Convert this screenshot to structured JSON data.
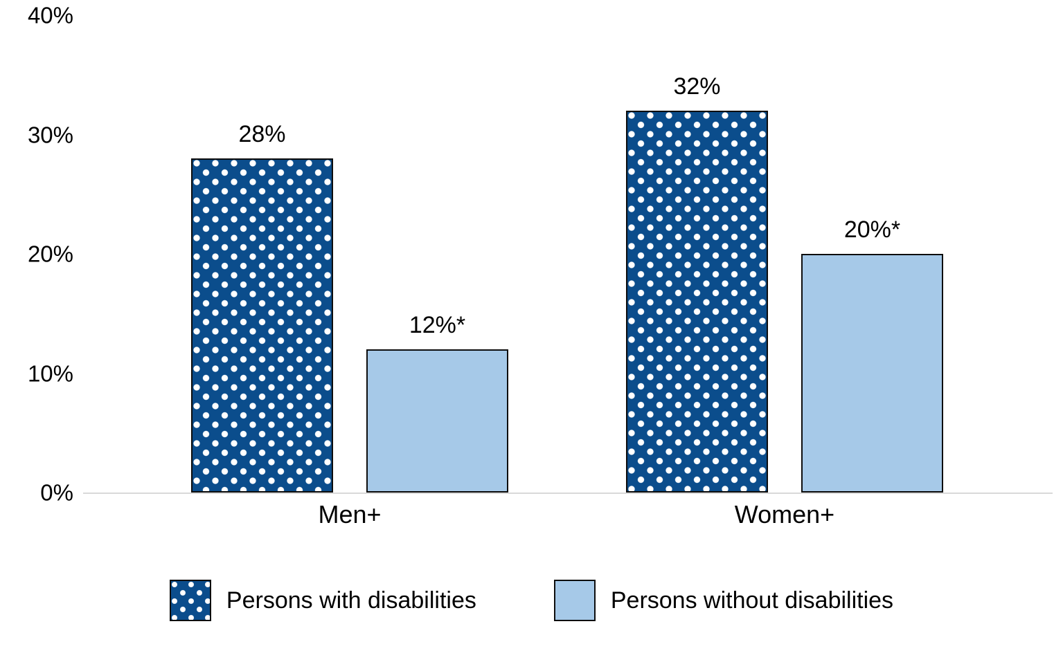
{
  "chart_data": {
    "type": "bar",
    "title": "",
    "xlabel": "",
    "ylabel": "",
    "categories": [
      "Men+",
      "Women+"
    ],
    "series": [
      {
        "name": "Persons with disabilities",
        "values": [
          28,
          32
        ],
        "labels": [
          "28%",
          "32%"
        ],
        "color": "#0b4d8c",
        "pattern": "white-dots"
      },
      {
        "name": "Persons without disabilities",
        "values": [
          12,
          20
        ],
        "labels": [
          "12%*",
          "20%*"
        ],
        "color": "#a6c9e8",
        "pattern": "solid"
      }
    ],
    "ylim": [
      0,
      40
    ],
    "ytick_values": [
      0,
      10,
      20,
      30,
      40
    ],
    "yticks": [
      "0%",
      "10%",
      "20%",
      "30%",
      "40%"
    ],
    "grid": false,
    "legend_position": "bottom",
    "axis_line_color": "#d9d9d9"
  }
}
